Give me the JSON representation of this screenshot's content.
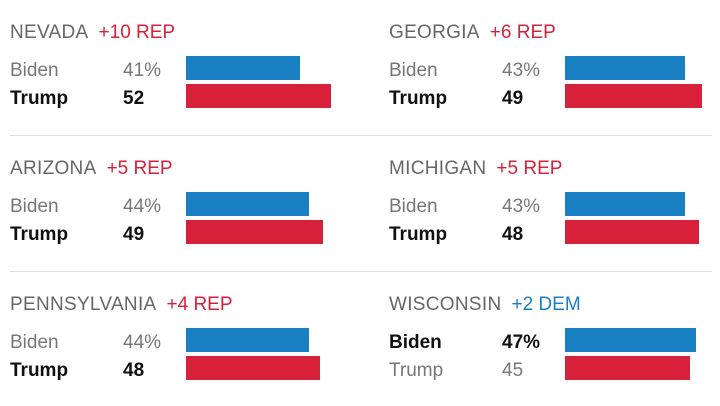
{
  "colors": {
    "dem": "#1a80c4",
    "rep": "#d7203a",
    "rep_text": "#d7203a",
    "dem_text": "#1a80c4"
  },
  "chart_data": {
    "type": "bar",
    "title": "",
    "xlim": [
      0,
      60
    ],
    "series_names": [
      "Biden",
      "Trump"
    ],
    "states": [
      {
        "name": "NEVADA",
        "margin": "+10 REP",
        "lean": "rep",
        "leader": "Trump",
        "candidates": [
          {
            "name": "Biden",
            "label": "41%",
            "value": 41
          },
          {
            "name": "Trump",
            "label": "52",
            "value": 52
          }
        ]
      },
      {
        "name": "GEORGIA",
        "margin": "+6 REP",
        "lean": "rep",
        "leader": "Trump",
        "candidates": [
          {
            "name": "Biden",
            "label": "43%",
            "value": 43
          },
          {
            "name": "Trump",
            "label": "49",
            "value": 49
          }
        ]
      },
      {
        "name": "ARIZONA",
        "margin": "+5 REP",
        "lean": "rep",
        "leader": "Trump",
        "candidates": [
          {
            "name": "Biden",
            "label": "44%",
            "value": 44
          },
          {
            "name": "Trump",
            "label": "49",
            "value": 49
          }
        ]
      },
      {
        "name": "MICHIGAN",
        "margin": "+5 REP",
        "lean": "rep",
        "leader": "Trump",
        "candidates": [
          {
            "name": "Biden",
            "label": "43%",
            "value": 43
          },
          {
            "name": "Trump",
            "label": "48",
            "value": 48
          }
        ]
      },
      {
        "name": "PENNSYLVANIA",
        "margin": "+4 REP",
        "lean": "rep",
        "leader": "Trump",
        "candidates": [
          {
            "name": "Biden",
            "label": "44%",
            "value": 44
          },
          {
            "name": "Trump",
            "label": "48",
            "value": 48
          }
        ]
      },
      {
        "name": "WISCONSIN",
        "margin": "+2 DEM",
        "lean": "dem",
        "leader": "Biden",
        "candidates": [
          {
            "name": "Biden",
            "label": "47%",
            "value": 47
          },
          {
            "name": "Trump",
            "label": "45",
            "value": 45
          }
        ]
      }
    ]
  }
}
